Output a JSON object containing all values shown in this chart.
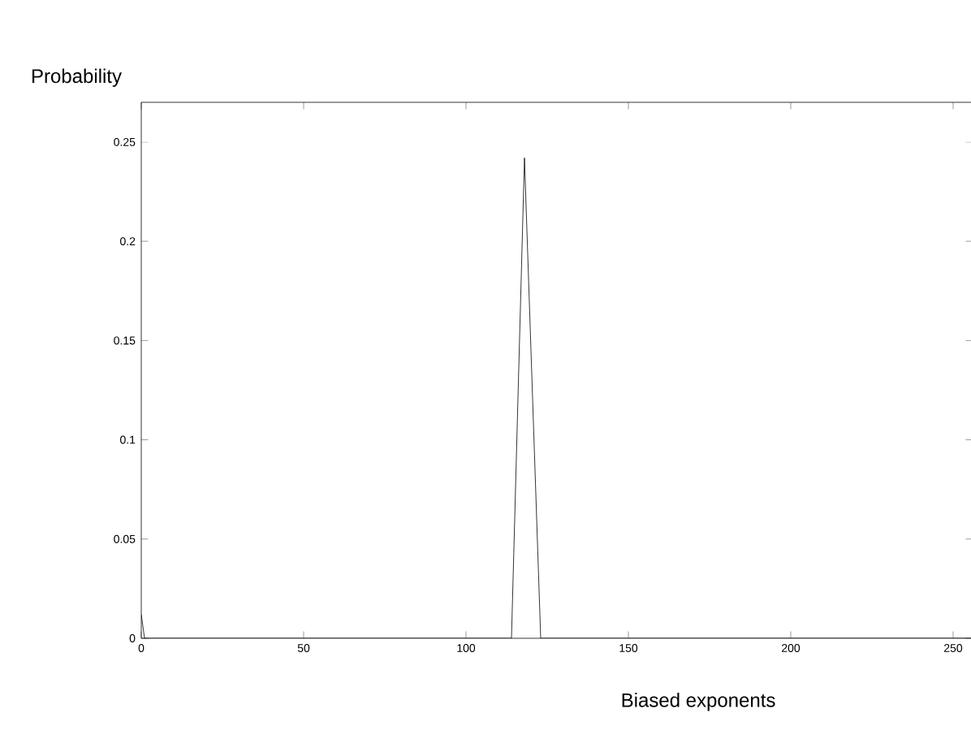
{
  "chart_data": {
    "type": "line",
    "xlabel": "Biased exponents",
    "ylabel": "Probability",
    "x": [
      0,
      1,
      114,
      118,
      123,
      256
    ],
    "values": [
      0.012,
      0,
      0,
      0.242,
      0,
      0
    ],
    "color": "#000000",
    "line_style": "solid",
    "marker": "none",
    "grid": false,
    "xlim": [
      0,
      256
    ],
    "ylim": [
      0,
      0.27
    ],
    "xticks": [
      0,
      50,
      100,
      150,
      200,
      250
    ],
    "yticks": [
      0,
      0.05,
      0.1,
      0.15,
      0.2,
      0.25
    ]
  }
}
